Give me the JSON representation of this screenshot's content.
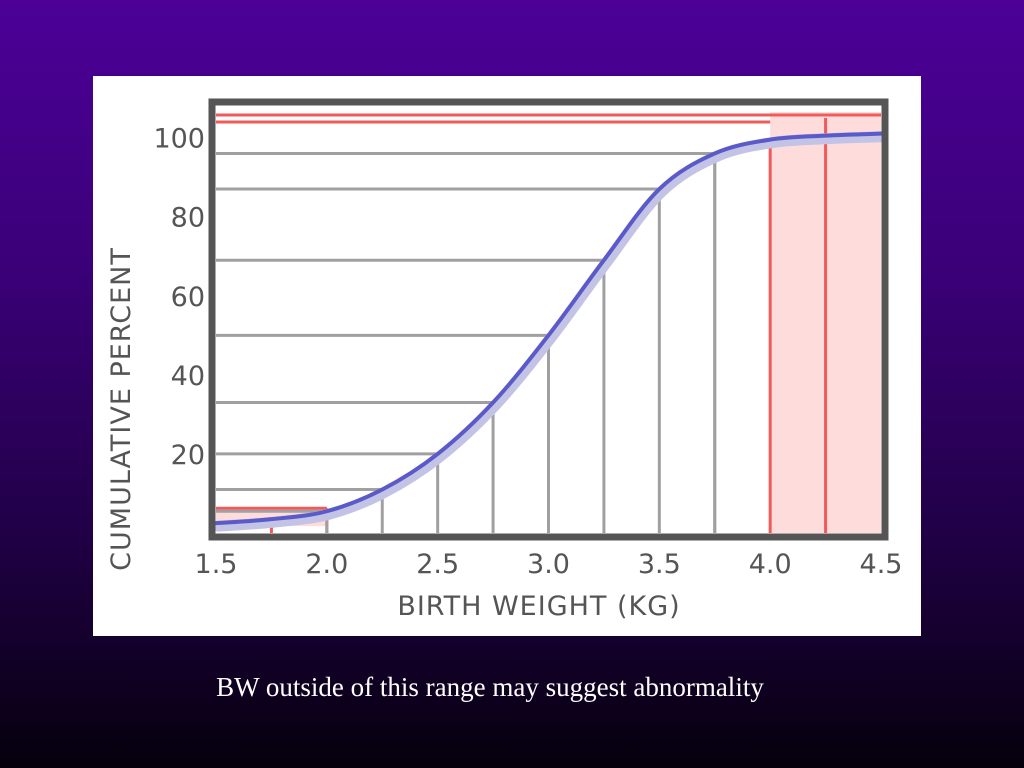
{
  "caption": "BW outside of this range may suggest abnormality",
  "colors": {
    "curve": "#5a5ac8",
    "curve_shadow": "#c3c3e6",
    "highlight_line": "#f05a5a",
    "highlight_fill": "#ffdcdc",
    "grid": "#a0a0a0",
    "frame": "#555555"
  },
  "chart_data": {
    "type": "line",
    "xlabel": "BIRTH WEIGHT (KG)",
    "ylabel": "CUMULATIVE PERCENT",
    "xlim": [
      1.5,
      4.5
    ],
    "ylim": [
      0,
      108
    ],
    "x_ticks": [
      "1.5",
      "2.0",
      "2.5",
      "3.0",
      "3.5",
      "4.0",
      "4.5"
    ],
    "y_ticks": [
      "20",
      "40",
      "60",
      "80",
      "100"
    ],
    "grid": true,
    "series": [
      {
        "x": [
          1.5,
          1.75,
          2.0,
          2.25,
          2.5,
          2.75,
          3.0,
          3.25,
          3.5,
          3.75,
          4.0,
          4.25,
          4.5
        ],
        "y": [
          2.5,
          3.5,
          5.5,
          11,
          20,
          33,
          50,
          69,
          87,
          96,
          99.5,
          100.5,
          101
        ]
      }
    ],
    "highlighted_ranges": [
      {
        "x": [
          1.5,
          2.0
        ],
        "y": [
          2.5,
          5.5
        ]
      },
      {
        "x": [
          4.0,
          4.5
        ],
        "y": [
          99.5,
          101
        ]
      }
    ]
  }
}
